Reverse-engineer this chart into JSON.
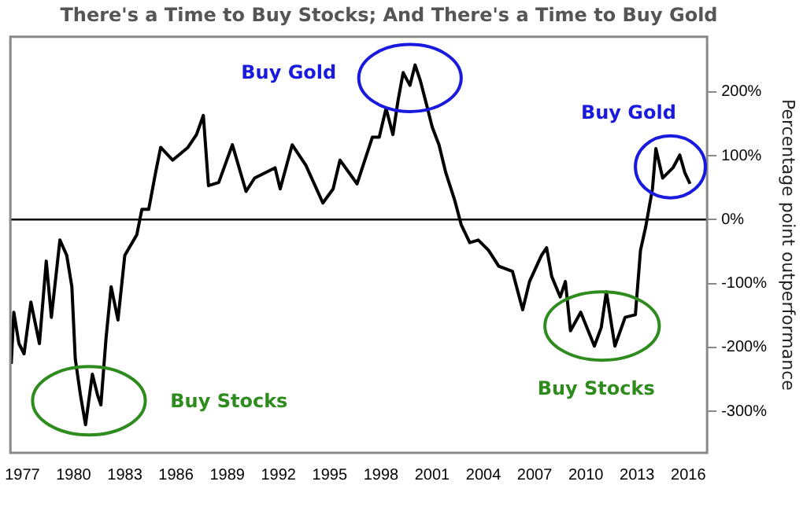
{
  "chart_data": {
    "type": "line",
    "title": "There's a Time to Buy Stocks; And There's a Time to Buy Gold",
    "ylabel": "Percentage point outperformance",
    "xlim": [
      1976.3,
      2017.1
    ],
    "xticks": [
      1977,
      1980,
      1983,
      1986,
      1989,
      1992,
      1995,
      1998,
      2001,
      2004,
      2007,
      2010,
      2013,
      2016
    ],
    "ylim": [
      -365,
      286
    ],
    "yticks": [
      {
        "value": -300,
        "label": "-300%"
      },
      {
        "value": -200,
        "label": "-200%"
      },
      {
        "value": -100,
        "label": "-100%"
      },
      {
        "value": 0,
        "label": "0%"
      },
      {
        "value": 100,
        "label": "100%"
      },
      {
        "value": 200,
        "label": "200%"
      }
    ],
    "grid": false,
    "legend": false,
    "marker": "none",
    "line_style": "solid",
    "ref_lines": [
      {
        "axis": "y",
        "value": 0,
        "color": "#000000"
      }
    ],
    "annotations": [
      "Buy Stocks",
      "Buy Gold",
      "Buy Gold",
      "Buy Stocks"
    ],
    "series": [
      {
        "color": "#000000",
        "x": [
          1976.35,
          1976.5,
          1976.8,
          1977.1,
          1977.5,
          1978.0,
          1978.4,
          1978.7,
          1979.2,
          1979.6,
          1979.9,
          1980.1,
          1980.4,
          1980.7,
          1981.1,
          1981.4,
          1981.6,
          1981.9,
          1982.2,
          1982.6,
          1983.0,
          1983.7,
          1984.0,
          1984.4,
          1984.8,
          1985.1,
          1985.8,
          1986.7,
          1987.2,
          1987.6,
          1987.9,
          1988.5,
          1989.3,
          1990.1,
          1990.6,
          1991.8,
          1992.1,
          1992.8,
          1993.6,
          1994.6,
          1995.2,
          1995.6,
          1996.6,
          1997.5,
          1997.9,
          1998.3,
          1998.7,
          1999.0,
          1999.3,
          1999.7,
          2000.0,
          2000.3,
          2000.7,
          2001.0,
          2001.4,
          2001.8,
          2002.3,
          2002.7,
          2003.2,
          2003.7,
          2004.3,
          2004.9,
          2005.7,
          2006.3,
          2006.7,
          2007.4,
          2007.7,
          2008.0,
          2008.5,
          2008.8,
          2009.1,
          2009.7,
          2010.5,
          2010.9,
          2011.2,
          2011.7,
          2012.3,
          2012.9,
          2013.2,
          2013.5,
          2013.9,
          2014.1,
          2014.5,
          2015.1,
          2015.5,
          2015.8,
          2016.1
        ],
        "values": [
          -226,
          -145,
          -194,
          -210,
          -129,
          -194,
          -65,
          -153,
          -32,
          -56,
          -105,
          -218,
          -274,
          -321,
          -242,
          -274,
          -290,
          -186,
          -105,
          -157,
          -56,
          -24,
          16,
          16,
          73,
          113,
          93,
          113,
          133,
          163,
          53,
          58,
          117,
          44,
          65,
          81,
          48,
          117,
          85,
          26,
          48,
          93,
          56,
          129,
          129,
          174,
          133,
          186,
          230,
          210,
          242,
          218,
          177,
          145,
          117,
          73,
          32,
          -8,
          -36,
          -32,
          -48,
          -73,
          -81,
          -141,
          -97,
          -56,
          -44,
          -89,
          -121,
          -97,
          -174,
          -145,
          -198,
          -169,
          -113,
          -198,
          -153,
          -149,
          -48,
          -12,
          48,
          111,
          65,
          81,
          101,
          73,
          56
        ]
      }
    ]
  }
}
